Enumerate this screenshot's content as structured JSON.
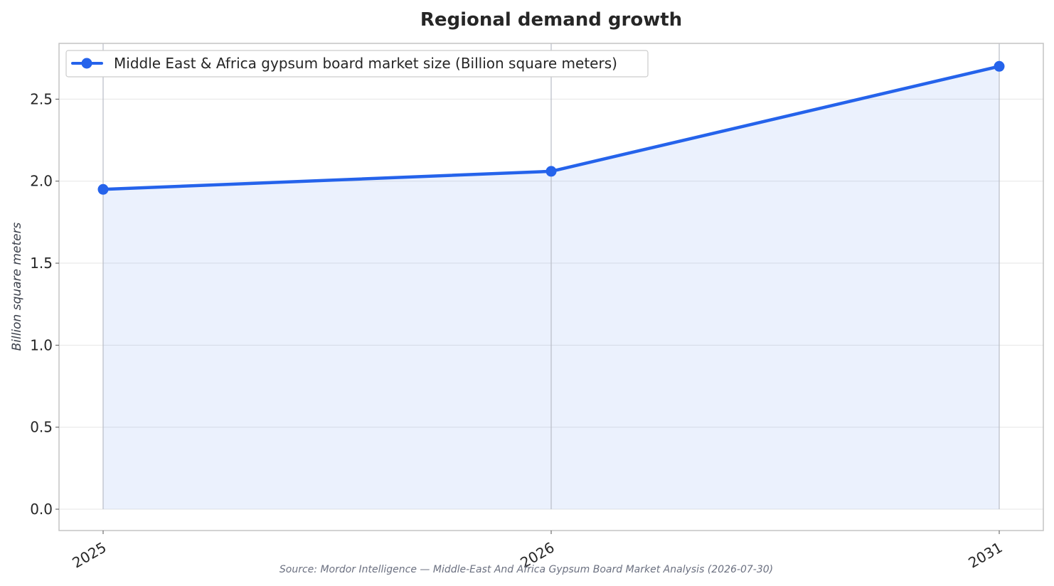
{
  "chart_data": {
    "type": "area",
    "title": "Regional demand growth",
    "ylabel": "Billion square meters",
    "xlabel": "",
    "categories": [
      "2025",
      "2026",
      "2031"
    ],
    "series": [
      {
        "name": "Middle East & Africa gypsum board market size (Billion square meters)",
        "values": [
          1.95,
          2.06,
          2.7
        ]
      }
    ],
    "ylim": [
      -0.13,
      2.84
    ],
    "yticks": [
      0.0,
      0.5,
      1.0,
      1.5,
      2.0,
      2.5
    ],
    "ytick_labels": [
      "0.0",
      "0.5",
      "1.0",
      "1.5",
      "2.0",
      "2.5"
    ],
    "grid": true,
    "legend": "top-left",
    "source": "Source: Mordor Intelligence — Middle-East And Africa Gypsum Board Market Analysis (2026-07-30)",
    "colors": {
      "line": "#2563eb",
      "fill": "#2563eb",
      "grid": "#e6e6e6",
      "vline": "#b8bcc6",
      "frame": "#c4c4c4"
    }
  }
}
